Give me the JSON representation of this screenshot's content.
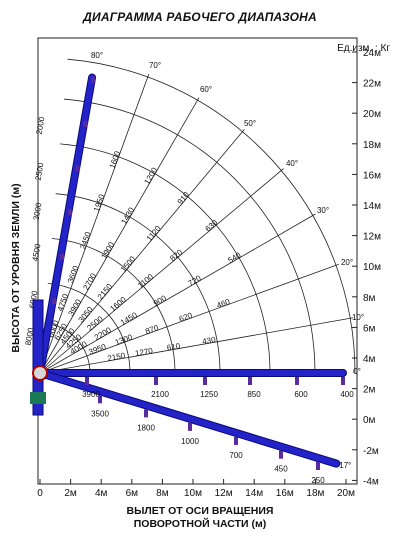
{
  "title": "ДИАГРАММА РАБОЧЕГО ДИАПАЗОНА",
  "units": "Ед.изм. : Кг",
  "ylabel": "ВЫСОТА ОТ УРОВНЯ ЗЕМЛИ (м)",
  "xlabel_line1": "ВЫЛЕТ ОТ ОСИ ВРАЩЕНИЯ",
  "xlabel_line2": "ПОВОРОТНОЙ ЧАСТИ (м)",
  "colors": {
    "boom": "#2323c8",
    "boom_edge": "#0a0a7a",
    "hook": "#5a2ba0",
    "grid": "#222222"
  },
  "y_ticks": [
    "24м",
    "22м",
    "20м",
    "18м",
    "16м",
    "14м",
    "12м",
    "10м",
    "8м",
    "6м",
    "4м",
    "2м",
    "0м",
    "-2м",
    "-4м"
  ],
  "x_ticks": [
    "0",
    "2м",
    "4м",
    "6м",
    "8м",
    "10м",
    "12м",
    "14м",
    "16м",
    "18м",
    "20м"
  ],
  "angles": [
    "80°",
    "70°",
    "60°",
    "50°",
    "40°",
    "30°",
    "20°",
    "10°",
    "0°",
    "-17°"
  ],
  "boom_80": [
    "8000",
    "6000",
    "4500",
    "3000",
    "2500",
    "2000"
  ],
  "radial_values": [
    {
      "ray": "70",
      "values": [
        "6000",
        "4750",
        "3600",
        "2450",
        "1950",
        "1600"
      ]
    },
    {
      "ray": "60",
      "values": [
        "6250",
        "3900",
        "2700",
        "1900",
        "1430",
        "1200"
      ]
    },
    {
      "ray": "50",
      "values": [
        "4500",
        "3050",
        "2150",
        "1500",
        "1120",
        "910"
      ]
    },
    {
      "ray": "40",
      "values": [
        "4250",
        "2500",
        "1600",
        "1100",
        "820",
        "630"
      ]
    },
    {
      "ray": "30",
      "values": [
        "4000",
        "2200",
        "1450",
        "900",
        "720",
        "540"
      ]
    },
    {
      "ray": "20",
      "values": [
        "3950",
        "1300",
        "870",
        "620",
        "460"
      ]
    },
    {
      "ray": "10",
      "values": [
        "2150",
        "1270",
        "610",
        "430"
      ]
    }
  ],
  "boom_0": [
    "3900",
    "2100",
    "1250",
    "850",
    "600",
    "400"
  ],
  "boom_neg17": [
    "3500",
    "1800",
    "1000",
    "700",
    "450",
    "250"
  ]
}
